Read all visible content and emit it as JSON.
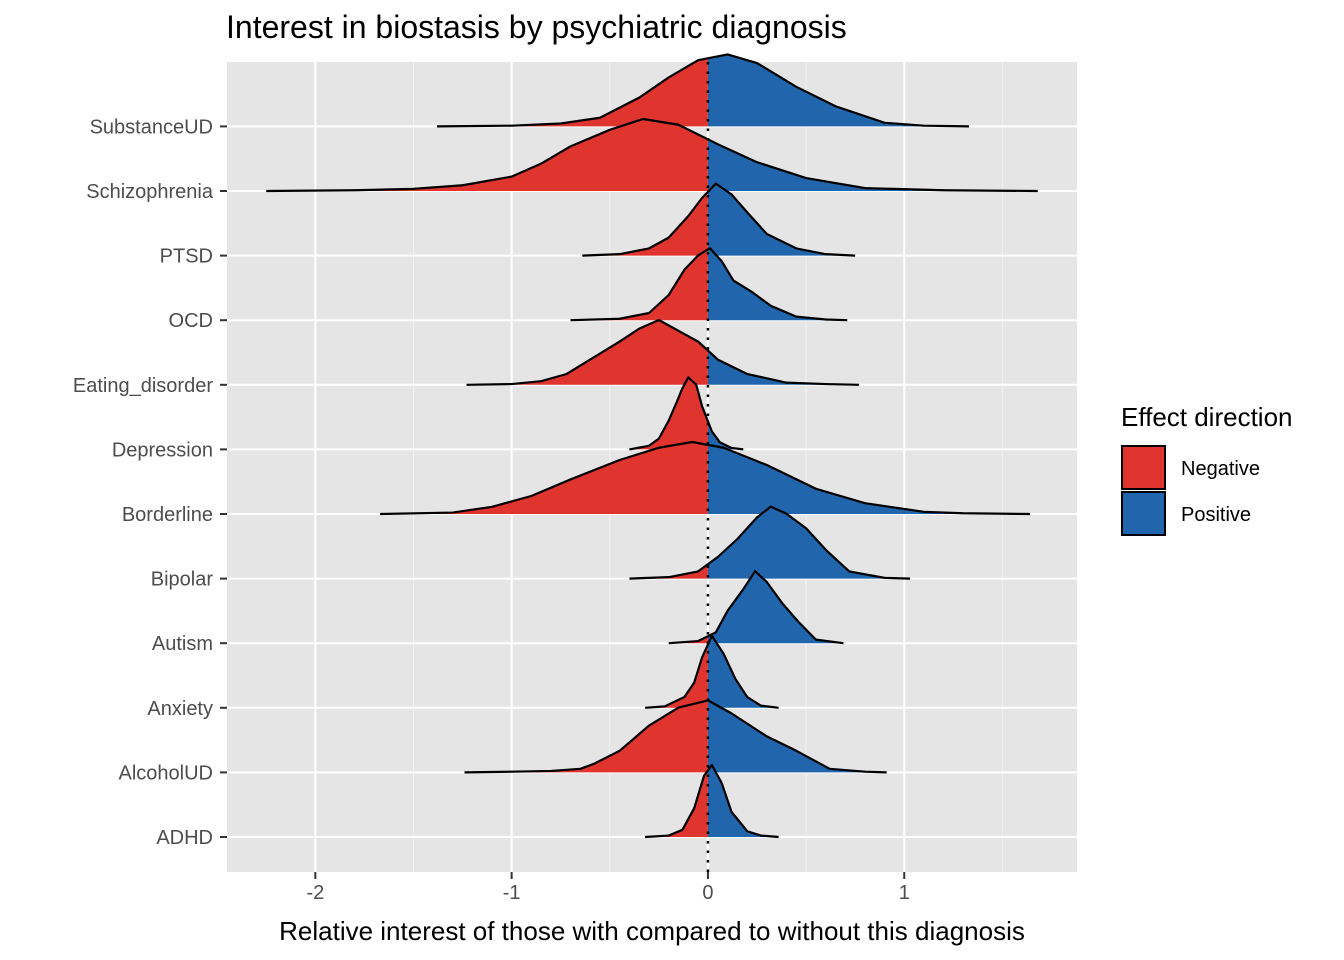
{
  "chart_data": {
    "type": "ridgeline",
    "title": "Interest in biostasis by psychiatric diagnosis",
    "xlabel": "Relative interest of those with compared to without this diagnosis",
    "ylabel": "",
    "xlim": [
      -2.45,
      1.88
    ],
    "xticks": [
      {
        "value": -2,
        "label": "-2"
      },
      {
        "value": -1,
        "label": "-1"
      },
      {
        "value": 0,
        "label": "0"
      },
      {
        "value": 1,
        "label": "1"
      }
    ],
    "reference_line": {
      "x": 0,
      "style": "dotted"
    },
    "grid": true,
    "legend": {
      "title": "Effect direction",
      "position": "right",
      "items": [
        {
          "label": "Negative",
          "color": "#E0342F"
        },
        {
          "label": "Positive",
          "color": "#2166AC"
        }
      ]
    },
    "categories": [
      "ADHD",
      "AlcoholUD",
      "Anxiety",
      "Autism",
      "Bipolar",
      "Borderline",
      "Depression",
      "Eating_disorder",
      "OCD",
      "PTSD",
      "Schizophrenia",
      "SubstanceUD"
    ],
    "series": [
      {
        "name": "ADHD",
        "points": [
          [
            -0.32,
            0
          ],
          [
            -0.2,
            0.02
          ],
          [
            -0.13,
            0.1
          ],
          [
            -0.07,
            0.4
          ],
          [
            -0.02,
            0.85
          ],
          [
            0.02,
            1.0
          ],
          [
            0.07,
            0.75
          ],
          [
            0.12,
            0.35
          ],
          [
            0.2,
            0.08
          ],
          [
            0.27,
            0.02
          ],
          [
            0.36,
            0
          ]
        ]
      },
      {
        "name": "AlcoholUD",
        "points": [
          [
            -1.24,
            0
          ],
          [
            -1.0,
            0.01
          ],
          [
            -0.8,
            0.02
          ],
          [
            -0.65,
            0.05
          ],
          [
            -0.58,
            0.12
          ],
          [
            -0.45,
            0.3
          ],
          [
            -0.3,
            0.65
          ],
          [
            -0.15,
            0.9
          ],
          [
            0.0,
            1.0
          ],
          [
            0.12,
            0.82
          ],
          [
            0.3,
            0.5
          ],
          [
            0.45,
            0.3
          ],
          [
            0.62,
            0.05
          ],
          [
            0.8,
            0.01
          ],
          [
            0.91,
            0
          ]
        ]
      },
      {
        "name": "Anxiety",
        "points": [
          [
            -0.32,
            0
          ],
          [
            -0.22,
            0.02
          ],
          [
            -0.12,
            0.15
          ],
          [
            -0.07,
            0.35
          ],
          [
            -0.03,
            0.7
          ],
          [
            0.02,
            1.0
          ],
          [
            0.08,
            0.75
          ],
          [
            0.14,
            0.4
          ],
          [
            0.2,
            0.15
          ],
          [
            0.27,
            0.03
          ],
          [
            0.36,
            0
          ]
        ]
      },
      {
        "name": "Autism",
        "points": [
          [
            -0.2,
            0
          ],
          [
            -0.05,
            0.03
          ],
          [
            0.04,
            0.15
          ],
          [
            0.1,
            0.45
          ],
          [
            0.18,
            0.75
          ],
          [
            0.24,
            1.0
          ],
          [
            0.3,
            0.85
          ],
          [
            0.38,
            0.55
          ],
          [
            0.46,
            0.3
          ],
          [
            0.55,
            0.05
          ],
          [
            0.69,
            0
          ]
        ]
      },
      {
        "name": "Bipolar",
        "points": [
          [
            -0.4,
            0
          ],
          [
            -0.2,
            0.02
          ],
          [
            -0.05,
            0.1
          ],
          [
            0.05,
            0.3
          ],
          [
            0.15,
            0.55
          ],
          [
            0.25,
            0.85
          ],
          [
            0.32,
            1.0
          ],
          [
            0.4,
            0.9
          ],
          [
            0.5,
            0.7
          ],
          [
            0.6,
            0.4
          ],
          [
            0.72,
            0.1
          ],
          [
            0.9,
            0.01
          ],
          [
            1.03,
            0
          ]
        ]
      },
      {
        "name": "Borderline",
        "points": [
          [
            -1.67,
            0
          ],
          [
            -1.3,
            0.02
          ],
          [
            -1.1,
            0.1
          ],
          [
            -0.9,
            0.25
          ],
          [
            -0.7,
            0.48
          ],
          [
            -0.45,
            0.75
          ],
          [
            -0.25,
            0.92
          ],
          [
            -0.08,
            1.0
          ],
          [
            0.08,
            0.92
          ],
          [
            0.3,
            0.68
          ],
          [
            0.55,
            0.35
          ],
          [
            0.8,
            0.15
          ],
          [
            1.1,
            0.03
          ],
          [
            1.3,
            0.01
          ],
          [
            1.64,
            0
          ]
        ]
      },
      {
        "name": "Depression",
        "points": [
          [
            -0.4,
            0
          ],
          [
            -0.3,
            0.05
          ],
          [
            -0.25,
            0.15
          ],
          [
            -0.2,
            0.4
          ],
          [
            -0.16,
            0.65
          ],
          [
            -0.13,
            0.85
          ],
          [
            -0.1,
            1.0
          ],
          [
            -0.06,
            0.9
          ],
          [
            -0.03,
            0.6
          ],
          [
            0.02,
            0.25
          ],
          [
            0.06,
            0.1
          ],
          [
            0.12,
            0.02
          ],
          [
            0.18,
            0
          ]
        ]
      },
      {
        "name": "Eating_disorder",
        "points": [
          [
            -1.23,
            0
          ],
          [
            -1.0,
            0.01
          ],
          [
            -0.85,
            0.05
          ],
          [
            -0.72,
            0.15
          ],
          [
            -0.6,
            0.35
          ],
          [
            -0.45,
            0.6
          ],
          [
            -0.35,
            0.78
          ],
          [
            -0.25,
            0.9
          ],
          [
            -0.15,
            0.75
          ],
          [
            -0.05,
            0.6
          ],
          [
            0.05,
            0.35
          ],
          [
            0.2,
            0.15
          ],
          [
            0.4,
            0.03
          ],
          [
            0.6,
            0.01
          ],
          [
            0.77,
            0
          ]
        ]
      },
      {
        "name": "OCD",
        "points": [
          [
            -0.7,
            0
          ],
          [
            -0.45,
            0.02
          ],
          [
            -0.3,
            0.1
          ],
          [
            -0.2,
            0.35
          ],
          [
            -0.12,
            0.7
          ],
          [
            -0.05,
            0.9
          ],
          [
            0.01,
            1.0
          ],
          [
            0.07,
            0.82
          ],
          [
            0.13,
            0.55
          ],
          [
            0.22,
            0.4
          ],
          [
            0.32,
            0.2
          ],
          [
            0.45,
            0.05
          ],
          [
            0.6,
            0.01
          ],
          [
            0.71,
            0
          ]
        ]
      },
      {
        "name": "PTSD",
        "points": [
          [
            -0.64,
            0
          ],
          [
            -0.45,
            0.02
          ],
          [
            -0.3,
            0.1
          ],
          [
            -0.2,
            0.25
          ],
          [
            -0.1,
            0.55
          ],
          [
            -0.03,
            0.8
          ],
          [
            0.04,
            1.0
          ],
          [
            0.12,
            0.85
          ],
          [
            0.2,
            0.6
          ],
          [
            0.3,
            0.3
          ],
          [
            0.45,
            0.1
          ],
          [
            0.6,
            0.02
          ],
          [
            0.75,
            0
          ]
        ]
      },
      {
        "name": "Schizophrenia",
        "points": [
          [
            -2.25,
            0
          ],
          [
            -1.8,
            0.01
          ],
          [
            -1.5,
            0.03
          ],
          [
            -1.25,
            0.08
          ],
          [
            -1.0,
            0.2
          ],
          [
            -0.85,
            0.38
          ],
          [
            -0.7,
            0.62
          ],
          [
            -0.5,
            0.85
          ],
          [
            -0.33,
            1.0
          ],
          [
            -0.15,
            0.92
          ],
          [
            0.05,
            0.65
          ],
          [
            0.25,
            0.4
          ],
          [
            0.5,
            0.18
          ],
          [
            0.8,
            0.04
          ],
          [
            1.2,
            0.01
          ],
          [
            1.68,
            0
          ]
        ]
      },
      {
        "name": "SubstanceUD",
        "points": [
          [
            -1.38,
            0
          ],
          [
            -1.0,
            0.01
          ],
          [
            -0.75,
            0.04
          ],
          [
            -0.55,
            0.12
          ],
          [
            -0.35,
            0.4
          ],
          [
            -0.2,
            0.68
          ],
          [
            -0.05,
            0.92
          ],
          [
            0.1,
            1.0
          ],
          [
            0.25,
            0.88
          ],
          [
            0.45,
            0.55
          ],
          [
            0.65,
            0.28
          ],
          [
            0.9,
            0.05
          ],
          [
            1.1,
            0.01
          ],
          [
            1.33,
            0
          ]
        ]
      }
    ]
  }
}
